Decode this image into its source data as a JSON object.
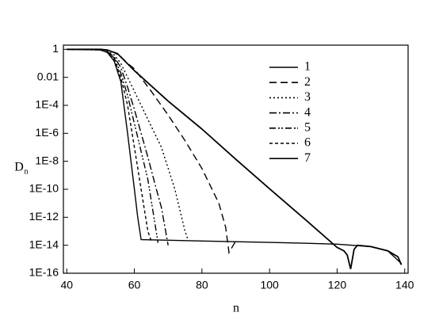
{
  "chart_data": {
    "type": "line",
    "x_label": "n",
    "y_label": "D",
    "y_label_subscript": "n",
    "ylog": true,
    "xlim": [
      39,
      141
    ],
    "ylim": [
      1e-16,
      2
    ],
    "xticks": [
      40,
      60,
      80,
      100,
      120,
      140
    ],
    "yticks": [
      1,
      0.01,
      {
        "value": 0.0001,
        "label": "1E-4"
      },
      {
        "value": 1e-06,
        "label": "1E-6"
      },
      {
        "value": 1e-08,
        "label": "1E-8"
      },
      {
        "value": 1e-10,
        "label": "1E-10"
      },
      {
        "value": 1e-12,
        "label": "1E-12"
      },
      {
        "value": 1e-14,
        "label": "1E-14"
      },
      {
        "value": 1e-16,
        "label": "1E-16"
      }
    ],
    "legend": "top-right",
    "series": [
      {
        "name": "1",
        "color": "#000000",
        "dash": "none",
        "x": [
          40,
          50,
          52,
          55,
          60,
          70,
          80,
          90,
          100,
          110,
          120,
          122,
          123,
          124,
          125,
          126,
          130,
          135,
          138,
          139
        ],
        "values": [
          1,
          1,
          0.9,
          0.5,
          0.03,
          0.0002,
          2e-06,
          1.4e-08,
          1.1e-10,
          9e-13,
          7e-15,
          4e-15,
          2e-15,
          2e-16,
          5e-15,
          1e-14,
          8e-15,
          4e-15,
          1.5e-15,
          4e-16
        ]
      },
      {
        "name": "2",
        "color": "#000000",
        "dash": "9,5",
        "x": [
          40,
          50,
          52,
          54,
          56,
          58,
          60,
          65,
          70,
          75,
          80,
          85,
          87,
          88,
          90
        ],
        "values": [
          1,
          0.97,
          0.85,
          0.6,
          0.3,
          0.1,
          0.04,
          0.001,
          2e-05,
          3e-07,
          3e-09,
          1e-11,
          2e-13,
          3e-15,
          2e-14
        ]
      },
      {
        "name": "3",
        "color": "#000000",
        "dash": "2,3",
        "x": [
          40,
          50,
          52,
          54,
          56,
          58,
          60,
          64,
          68,
          72,
          75,
          76
        ],
        "values": [
          1,
          0.95,
          0.75,
          0.4,
          0.1,
          0.01,
          0.001,
          1e-05,
          1e-07,
          1e-10,
          1e-13,
          2e-14
        ]
      },
      {
        "name": "4",
        "color": "#000000",
        "dash": "9,3,2,3",
        "x": [
          40,
          50,
          52,
          54,
          56,
          58,
          60,
          62,
          64,
          66,
          68,
          70
        ],
        "values": [
          1,
          0.95,
          0.7,
          0.3,
          0.05,
          0.002,
          5e-05,
          1e-06,
          2e-08,
          3e-10,
          5e-12,
          1e-14
        ]
      },
      {
        "name": "5",
        "color": "#000000",
        "dash": "8,3,2,2,2,3",
        "x": [
          40,
          50,
          52,
          54,
          56,
          58,
          60,
          62,
          64,
          66,
          67
        ],
        "values": [
          1,
          0.9,
          0.65,
          0.25,
          0.02,
          0.0005,
          5e-06,
          5e-08,
          5e-10,
          5e-13,
          1.5e-14
        ]
      },
      {
        "name": "6",
        "color": "#000000",
        "dash": "4,3",
        "x": [
          40,
          50,
          52,
          54,
          56,
          58,
          60,
          62,
          64,
          65
        ],
        "values": [
          1,
          0.9,
          0.6,
          0.2,
          0.01,
          0.0001,
          1e-07,
          1e-10,
          1e-13,
          2e-14
        ]
      },
      {
        "name": "7",
        "color": "#000000",
        "dash": "none",
        "x": [
          40,
          45,
          50,
          52,
          54,
          56,
          58,
          60,
          61,
          62,
          70,
          80,
          90,
          100,
          110,
          120,
          130,
          135,
          139
        ],
        "values": [
          1,
          1,
          0.9,
          0.6,
          0.15,
          0.005,
          1e-06,
          1e-10,
          1e-12,
          2.5e-14,
          2.3e-14,
          2e-14,
          1.8e-14,
          1.6e-14,
          1.4e-14,
          1.2e-14,
          8e-15,
          4e-15,
          5e-16
        ]
      }
    ]
  }
}
